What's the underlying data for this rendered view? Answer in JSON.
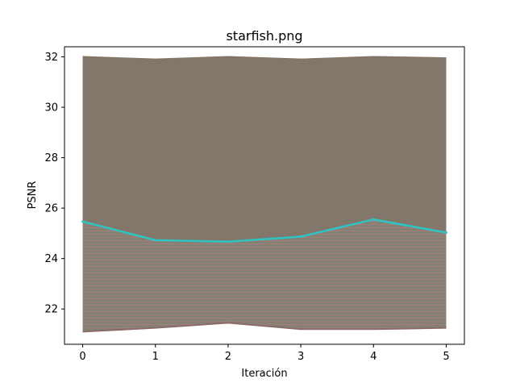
{
  "chart_data": {
    "type": "line",
    "title": "starfish.png",
    "xlabel": "Iteración",
    "ylabel": "PSNR",
    "x": [
      0,
      1,
      2,
      3,
      4,
      5
    ],
    "xticks": [
      "0",
      "1",
      "2",
      "3",
      "4",
      "5"
    ],
    "yticks": [
      "22",
      "24",
      "26",
      "28",
      "30",
      "32"
    ],
    "xlim": [
      -0.25,
      5.25
    ],
    "ylim": [
      20.6,
      32.4
    ],
    "grid": false,
    "legend": "none",
    "series": [
      {
        "values": [
          25.47,
          24.73,
          24.67,
          24.87,
          25.55,
          25.03
        ],
        "color": "#2ec4c4"
      },
      {
        "values": [
          21.1,
          21.25,
          21.45,
          21.2,
          21.2,
          21.25
        ],
        "color": "#8a6a6a"
      },
      {
        "values": [
          32.0,
          31.9,
          32.0,
          31.9,
          32.0,
          31.95
        ],
        "color": "#837566"
      }
    ],
    "fill_color": "#82776a"
  }
}
